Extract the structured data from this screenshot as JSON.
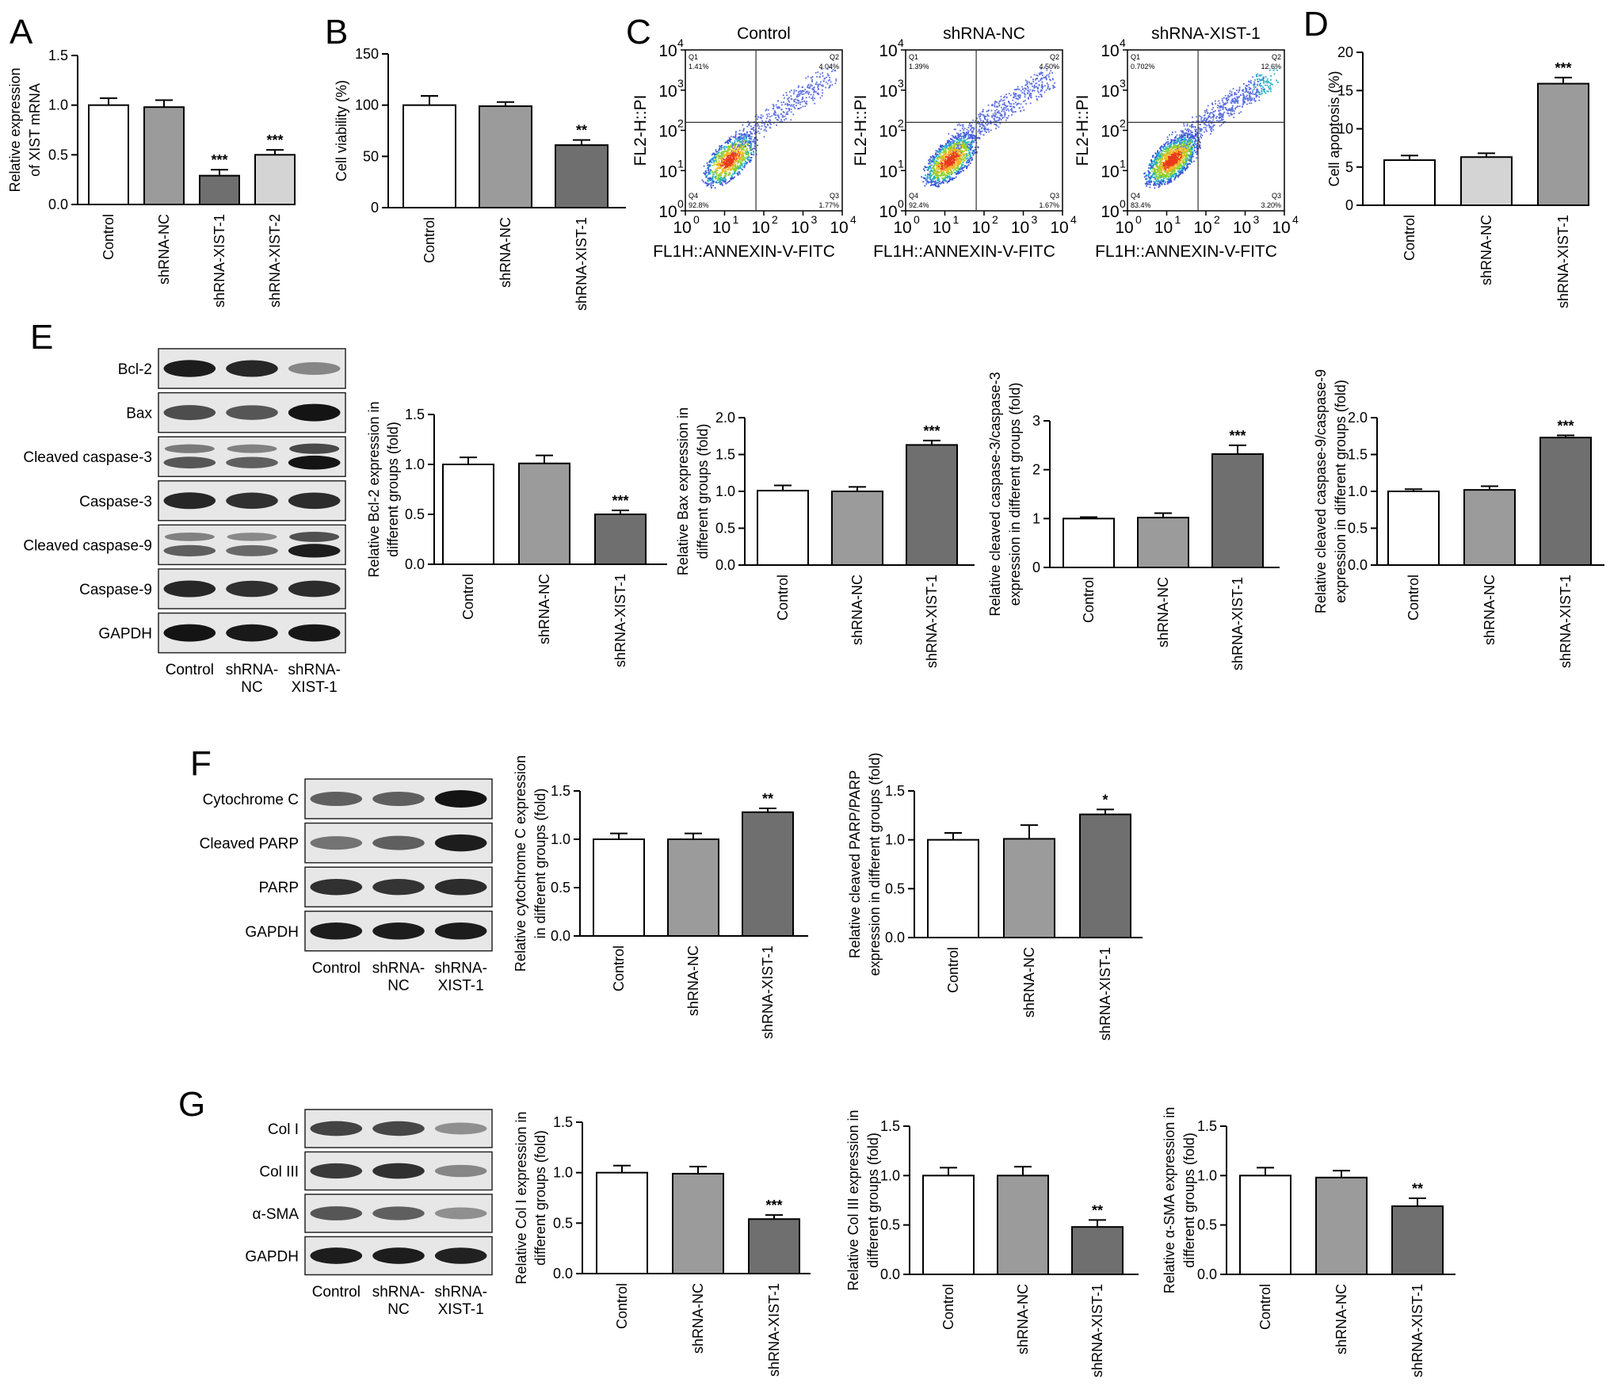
{
  "colors": {
    "white": "#ffffff",
    "midgray": "#9b9b9b",
    "darkgray": "#6f6f6f",
    "lightgray": "#d4d4d4",
    "axis": "#000000"
  },
  "panel_labels": [
    "A",
    "B",
    "C",
    "D",
    "E",
    "F",
    "G"
  ],
  "chart_data": [
    {
      "id": "A",
      "type": "bar",
      "ylabel": [
        "Relative expression",
        "of XIST mRNA"
      ],
      "categories": [
        "Control",
        "shRNA-NC",
        "shRNA-XIST-1",
        "shRNA-XIST-2"
      ],
      "values": [
        1.0,
        0.98,
        0.29,
        0.5
      ],
      "errors": [
        0.07,
        0.07,
        0.06,
        0.05
      ],
      "significance": [
        "",
        "",
        "***",
        "***"
      ],
      "fills": [
        "white",
        "midgray",
        "darkgray",
        "lightgray"
      ],
      "ylim": [
        0,
        1.5
      ],
      "yticks": [
        "0.0",
        "0.5",
        "1.0",
        "1.5"
      ],
      "ytick_values": [
        0,
        0.5,
        1.0,
        1.5
      ]
    },
    {
      "id": "B",
      "type": "bar",
      "ylabel": [
        "Cell viability (%)"
      ],
      "categories": [
        "Control",
        "shRNA-NC",
        "shRNA-XIST-1"
      ],
      "values": [
        100,
        99,
        61
      ],
      "errors": [
        9,
        4,
        5
      ],
      "significance": [
        "",
        "",
        "**"
      ],
      "fills": [
        "white",
        "midgray",
        "darkgray"
      ],
      "ylim": [
        0,
        150
      ],
      "yticks": [
        "0",
        "50",
        "100",
        "150"
      ],
      "ytick_values": [
        0,
        50,
        100,
        150
      ]
    },
    {
      "id": "D",
      "type": "bar",
      "ylabel": [
        "Cell apoptosis (%)"
      ],
      "categories": [
        "Control",
        "shRNA-NC",
        "shRNA-XIST-1"
      ],
      "values": [
        5.9,
        6.3,
        15.9
      ],
      "errors": [
        0.6,
        0.5,
        0.8
      ],
      "significance": [
        "",
        "",
        "***"
      ],
      "fills": [
        "white",
        "lightgray",
        "midgray"
      ],
      "ylim": [
        0,
        20
      ],
      "yticks": [
        "0",
        "5",
        "10",
        "15",
        "20"
      ],
      "ytick_values": [
        0,
        5,
        10,
        15,
        20
      ]
    },
    {
      "id": "E1",
      "type": "bar",
      "ylabel": [
        "Relative Bcl-2 expression in",
        "different groups (fold)"
      ],
      "categories": [
        "Control",
        "shRNA-NC",
        "shRNA-XIST-1"
      ],
      "values": [
        1.0,
        1.01,
        0.5
      ],
      "errors": [
        0.07,
        0.08,
        0.04
      ],
      "significance": [
        "",
        "",
        "***"
      ],
      "fills": [
        "white",
        "midgray",
        "darkgray"
      ],
      "ylim": [
        0,
        1.5
      ],
      "yticks": [
        "0.0",
        "0.5",
        "1.0",
        "1.5"
      ],
      "ytick_values": [
        0,
        0.5,
        1.0,
        1.5
      ]
    },
    {
      "id": "E2",
      "type": "bar",
      "ylabel": [
        "Relative Bax expression in",
        "different groups (fold)"
      ],
      "categories": [
        "Control",
        "shRNA-NC",
        "shRNA-XIST-1"
      ],
      "values": [
        1.01,
        1.0,
        1.63
      ],
      "errors": [
        0.07,
        0.06,
        0.06
      ],
      "significance": [
        "",
        "",
        "***"
      ],
      "fills": [
        "white",
        "midgray",
        "darkgray"
      ],
      "ylim": [
        0,
        2.0
      ],
      "yticks": [
        "0.0",
        "0.5",
        "1.0",
        "1.5",
        "2.0"
      ],
      "ytick_values": [
        0,
        0.5,
        1.0,
        1.5,
        2.0
      ]
    },
    {
      "id": "E3",
      "type": "bar",
      "ylabel": [
        "Relative cleaved caspase-3/caspase-3",
        "expression in different groups (fold)"
      ],
      "categories": [
        "Control",
        "shRNA-NC",
        "shRNA-XIST-1"
      ],
      "values": [
        1.0,
        1.02,
        2.32
      ],
      "errors": [
        0.03,
        0.09,
        0.18
      ],
      "significance": [
        "",
        "",
        "***"
      ],
      "fills": [
        "white",
        "midgray",
        "darkgray"
      ],
      "ylim": [
        0,
        3
      ],
      "yticks": [
        "0",
        "1",
        "2",
        "3"
      ],
      "ytick_values": [
        0,
        1,
        2,
        3
      ]
    },
    {
      "id": "E4",
      "type": "bar",
      "ylabel": [
        "Relative cleaved caspase-9/caspase-9",
        "expression in different groups (fold)"
      ],
      "categories": [
        "Control",
        "shRNA-NC",
        "shRNA-XIST-1"
      ],
      "values": [
        1.0,
        1.02,
        1.73
      ],
      "errors": [
        0.03,
        0.05,
        0.03
      ],
      "significance": [
        "",
        "",
        "***"
      ],
      "fills": [
        "white",
        "midgray",
        "darkgray"
      ],
      "ylim": [
        0,
        2.0
      ],
      "yticks": [
        "0.0",
        "0.5",
        "1.0",
        "1.5",
        "2.0"
      ],
      "ytick_values": [
        0,
        0.5,
        1.0,
        1.5,
        2.0
      ]
    },
    {
      "id": "F1",
      "type": "bar",
      "ylabel": [
        "Relative cytochrome C expression",
        "in different groups (fold)"
      ],
      "categories": [
        "Control",
        "shRNA-NC",
        "shRNA-XIST-1"
      ],
      "values": [
        1.0,
        1.0,
        1.28
      ],
      "errors": [
        0.06,
        0.06,
        0.04
      ],
      "significance": [
        "",
        "",
        "**"
      ],
      "fills": [
        "white",
        "midgray",
        "darkgray"
      ],
      "ylim": [
        0,
        1.5
      ],
      "yticks": [
        "0.0",
        "0.5",
        "1.0",
        "1.5"
      ],
      "ytick_values": [
        0,
        0.5,
        1.0,
        1.5
      ]
    },
    {
      "id": "F2",
      "type": "bar",
      "ylabel": [
        "Relative cleaved PARP/PARP",
        "expression in different groups (fold)"
      ],
      "categories": [
        "Control",
        "shRNA-NC",
        "shRNA-XIST-1"
      ],
      "values": [
        1.0,
        1.01,
        1.26
      ],
      "errors": [
        0.07,
        0.14,
        0.05
      ],
      "significance": [
        "",
        "",
        "*"
      ],
      "fills": [
        "white",
        "midgray",
        "darkgray"
      ],
      "ylim": [
        0,
        1.5
      ],
      "yticks": [
        "0.0",
        "0.5",
        "1.0",
        "1.5"
      ],
      "ytick_values": [
        0,
        0.5,
        1.0,
        1.5
      ]
    },
    {
      "id": "G1",
      "type": "bar",
      "ylabel": [
        "Relative Col I expression in",
        "different groups (fold)"
      ],
      "categories": [
        "Control",
        "shRNA-NC",
        "shRNA-XIST-1"
      ],
      "values": [
        1.0,
        0.99,
        0.54
      ],
      "errors": [
        0.07,
        0.07,
        0.04
      ],
      "significance": [
        "",
        "",
        "***"
      ],
      "fills": [
        "white",
        "midgray",
        "darkgray"
      ],
      "ylim": [
        0,
        1.5
      ],
      "yticks": [
        "0.0",
        "0.5",
        "1.0",
        "1.5"
      ],
      "ytick_values": [
        0,
        0.5,
        1.0,
        1.5
      ]
    },
    {
      "id": "G2",
      "type": "bar",
      "ylabel": [
        "Relative Col III expression in",
        "different groups (fold)"
      ],
      "categories": [
        "Control",
        "shRNA-NC",
        "shRNA-XIST-1"
      ],
      "values": [
        1.0,
        1.0,
        0.48
      ],
      "errors": [
        0.08,
        0.09,
        0.07
      ],
      "significance": [
        "",
        "",
        "**"
      ],
      "fills": [
        "white",
        "midgray",
        "darkgray"
      ],
      "ylim": [
        0,
        1.5
      ],
      "yticks": [
        "0.0",
        "0.5",
        "1.0",
        "1.5"
      ],
      "ytick_values": [
        0,
        0.5,
        1.0,
        1.5
      ]
    },
    {
      "id": "G3",
      "type": "bar",
      "ylabel": [
        "Relative α-SMA expression in",
        "different groups (fold)"
      ],
      "categories": [
        "Control",
        "shRNA-NC",
        "shRNA-XIST-1"
      ],
      "values": [
        1.0,
        0.98,
        0.69
      ],
      "errors": [
        0.08,
        0.07,
        0.08
      ],
      "significance": [
        "",
        "",
        "**"
      ],
      "fills": [
        "white",
        "midgray",
        "darkgray"
      ],
      "ylim": [
        0,
        1.5
      ],
      "yticks": [
        "0.0",
        "0.5",
        "1.0",
        "1.5"
      ],
      "ytick_values": [
        0,
        0.5,
        1.0,
        1.5
      ]
    }
  ],
  "flow_cytometry": {
    "xlabel": "FL1H::ANNEXIN-V-FITC",
    "ylabel": "FL2-H::PI",
    "ticks": [
      "0",
      "1",
      "2",
      "3",
      "4"
    ],
    "tick_base": "10",
    "plots": [
      {
        "title": "Control",
        "q1": "1.41%",
        "q2": "4.04%",
        "q3": "1.77%",
        "q4": "92.8%",
        "density": "low"
      },
      {
        "title": "shRNA-NC",
        "q1": "1.39%",
        "q2": "4.50%",
        "q3": "1.67%",
        "q4": "92.4%",
        "density": "medium"
      },
      {
        "title": "shRNA-XIST-1",
        "q1": "0.702%",
        "q2": "12.6%",
        "q3": "3.20%",
        "q4": "83.4%",
        "density": "high"
      }
    ],
    "quadrant_labels": [
      "Q1",
      "Q2",
      "Q3",
      "Q4"
    ]
  },
  "blots": {
    "E": {
      "rows": [
        {
          "label": "Bcl-2",
          "intensities": [
            0.9,
            0.85,
            0.35
          ]
        },
        {
          "label": "Bax",
          "intensities": [
            0.65,
            0.6,
            0.95
          ]
        },
        {
          "label": "Cleaved caspase-3",
          "intensities": [
            0.6,
            0.55,
            0.95
          ],
          "double": true
        },
        {
          "label": "Caspase-3",
          "intensities": [
            0.85,
            0.8,
            0.82
          ]
        },
        {
          "label": "Cleaved caspase-9",
          "intensities": [
            0.55,
            0.5,
            0.9
          ],
          "double": true
        },
        {
          "label": "Caspase-9",
          "intensities": [
            0.85,
            0.8,
            0.82
          ]
        },
        {
          "label": "GAPDH",
          "intensities": [
            0.95,
            0.92,
            0.93
          ]
        }
      ],
      "lanes": [
        [
          "Control"
        ],
        [
          "shRNA-",
          "NC"
        ],
        [
          "shRNA-",
          "XIST-1"
        ]
      ]
    },
    "F": {
      "rows": [
        {
          "label": "Cytochrome C",
          "intensities": [
            0.55,
            0.55,
            0.95
          ]
        },
        {
          "label": "Cleaved PARP",
          "intensities": [
            0.45,
            0.55,
            0.9
          ]
        },
        {
          "label": "PARP",
          "intensities": [
            0.8,
            0.78,
            0.82
          ]
        },
        {
          "label": "GAPDH",
          "intensities": [
            0.9,
            0.9,
            0.9
          ]
        }
      ],
      "lanes": [
        [
          "Control"
        ],
        [
          "shRNA-",
          "NC"
        ],
        [
          "shRNA-",
          "XIST-1"
        ]
      ]
    },
    "G": {
      "rows": [
        {
          "label": "Col I",
          "intensities": [
            0.7,
            0.68,
            0.3
          ]
        },
        {
          "label": "Col III",
          "intensities": [
            0.75,
            0.8,
            0.35
          ]
        },
        {
          "label": "α-SMA",
          "intensities": [
            0.6,
            0.55,
            0.3
          ]
        },
        {
          "label": "GAPDH",
          "intensities": [
            0.9,
            0.9,
            0.88
          ]
        }
      ],
      "lanes": [
        [
          "Control"
        ],
        [
          "shRNA-",
          "NC"
        ],
        [
          "shRNA-",
          "XIST-1"
        ]
      ]
    }
  }
}
